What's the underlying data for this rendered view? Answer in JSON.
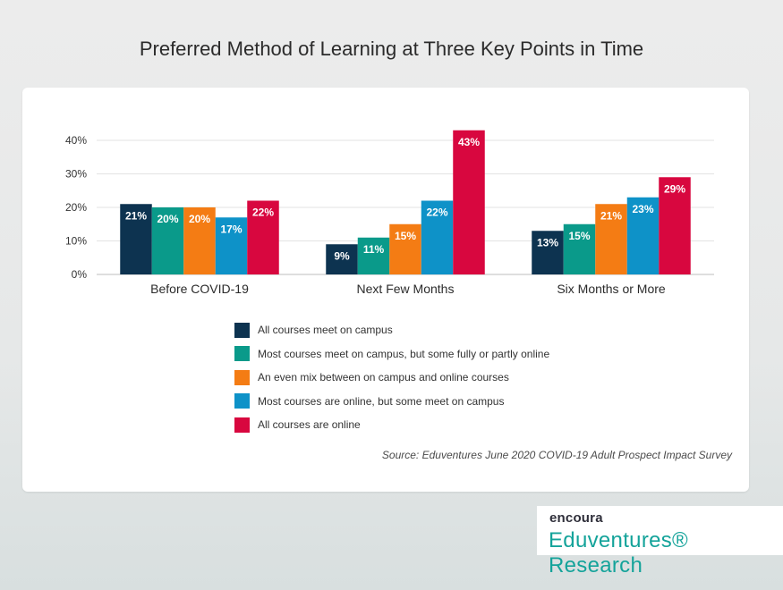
{
  "title": "Preferred Method of Learning at Three Key Points in Time",
  "source": "Source: Eduventures June 2020 COVID-19 Adult Prospect Impact Survey",
  "brand": {
    "company": "encoura",
    "division": "Eduventures® Research"
  },
  "chart_data": {
    "type": "bar",
    "title": "Preferred Method of Learning at Three Key Points in Time",
    "xlabel": "",
    "ylabel": "",
    "ylim": [
      0,
      40
    ],
    "yticks": [
      "0%",
      "10%",
      "20%",
      "30%",
      "40%"
    ],
    "grid": true,
    "legend_position": "bottom",
    "categories": [
      "Before COVID-19",
      "Next Few Months",
      "Six Months or More"
    ],
    "series": [
      {
        "name": "All courses meet on campus",
        "color": "#0d3350",
        "values": [
          21,
          9,
          13
        ]
      },
      {
        "name": "Most courses meet on campus, but some fully or partly online",
        "color": "#0a9a8a",
        "values": [
          20,
          11,
          15
        ]
      },
      {
        "name": "An even mix between on campus and online courses",
        "color": "#f47c14",
        "values": [
          20,
          15,
          21
        ]
      },
      {
        "name": "Most courses are online, but some meet on campus",
        "color": "#0e92c8",
        "values": [
          17,
          22,
          23
        ]
      },
      {
        "name": "All courses are online",
        "color": "#d8073f",
        "values": [
          22,
          43,
          29
        ]
      }
    ],
    "value_suffix": "%"
  }
}
